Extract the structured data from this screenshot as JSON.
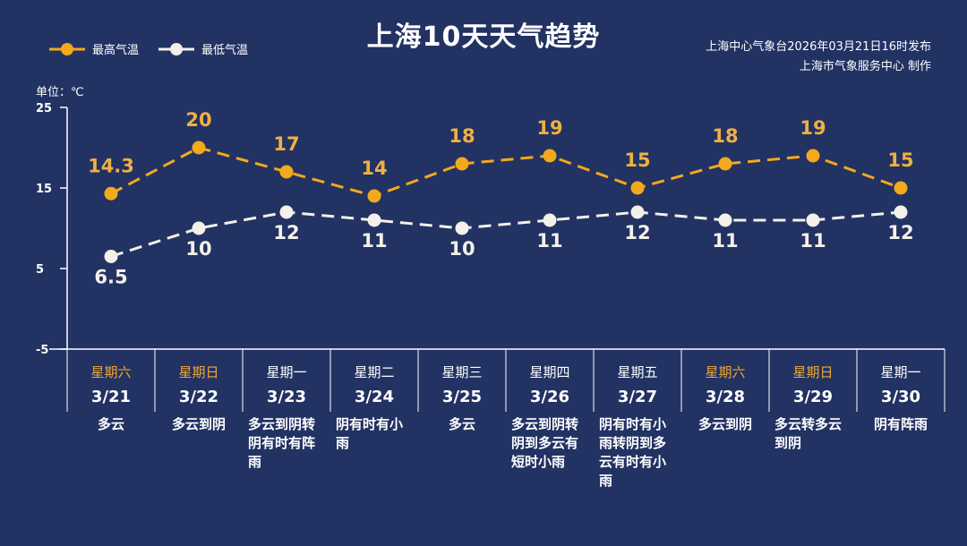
{
  "title": "上海10天天气趋势",
  "source_line1": "上海中心气象台2026年03月21日16时发布",
  "source_line2": "上海市气象服务中心  制作",
  "unit_label": "单位：℃",
  "colors": {
    "background": "#223263",
    "high": "#f2a91c",
    "high_label": "#f0b040",
    "low": "#f4f0ea",
    "weekend": "#f0a830"
  },
  "chart_data": {
    "type": "line",
    "title": "上海10天天气趋势",
    "ylim": [
      -5,
      25
    ],
    "yticks": [
      25,
      15,
      5,
      -5
    ],
    "legend_position": "top-left",
    "grid": false,
    "categories": [
      "3/21",
      "3/22",
      "3/23",
      "3/24",
      "3/25",
      "3/26",
      "3/27",
      "3/28",
      "3/29",
      "3/30"
    ],
    "weekdays": [
      "星期六",
      "星期日",
      "星期一",
      "星期二",
      "星期三",
      "星期四",
      "星期五",
      "星期六",
      "星期日",
      "星期一"
    ],
    "weekend": [
      true,
      true,
      false,
      false,
      false,
      false,
      false,
      true,
      true,
      false
    ],
    "weather": [
      "多云",
      "多云到阴",
      "多云到阴转阴有时有阵雨",
      "阴有时有小雨",
      "多云",
      "多云到阴转阴到多云有短时小雨",
      "阴有时有小雨转阴到多云有时有小雨",
      "多云到阴",
      "多云转多云到阴",
      "阴有阵雨"
    ],
    "series": [
      {
        "name": "最高气温",
        "values": [
          14.3,
          20,
          17,
          14,
          18,
          19,
          15,
          18,
          19,
          15
        ]
      },
      {
        "name": "最低气温",
        "values": [
          6.5,
          10,
          12,
          11,
          10,
          11,
          12,
          11,
          11,
          12
        ]
      }
    ]
  }
}
